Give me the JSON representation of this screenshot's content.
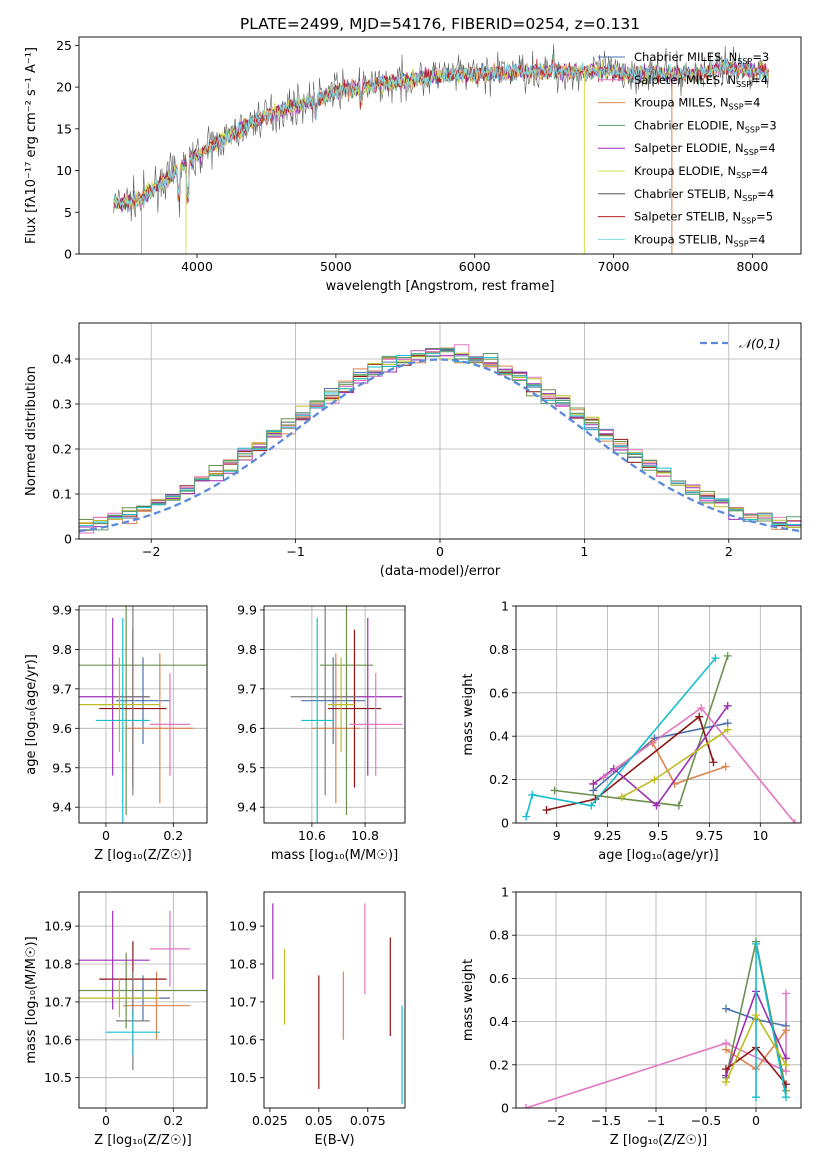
{
  "figure": {
    "title": "PLATE=2499, MJD=54176, FIBERID=0254, z=0.131"
  },
  "palette": [
    "#4c72b0",
    "#dd8452",
    "#6d904f",
    "#8c1515",
    "#9b30b4",
    "#e377c2",
    "#7f7f7f",
    "#bcbd22",
    "#17becf",
    "#5a9e6f"
  ],
  "chart_data": [
    {
      "id": "spectrum",
      "type": "line",
      "title": "PLATE=2499, MJD=54176, FIBERID=0254, z=0.131",
      "xlabel": "wavelength [Angstrom, rest frame]",
      "ylabel": "Flux [fλ10⁻¹⁷ erg cm⁻² s⁻¹ A⁻¹]",
      "xlim": [
        3150,
        8350
      ],
      "ylim": [
        0,
        26
      ],
      "xticks": [
        4000,
        5000,
        6000,
        7000,
        8000
      ],
      "yticks": [
        0,
        5,
        10,
        15,
        20,
        25
      ],
      "grid": false,
      "legend": "top-right",
      "envelope": {
        "x": [
          3400,
          3500,
          3600,
          3700,
          3800,
          3900,
          4000,
          4100,
          4200,
          4300,
          4400,
          4500,
          4600,
          4700,
          4800,
          4900,
          5000,
          5100,
          5200,
          5300,
          5400,
          5500,
          5600,
          5700,
          5800,
          5900,
          6000,
          6100,
          6200,
          6300,
          6400,
          6500,
          6600,
          6700,
          6800,
          6900,
          7000,
          7100,
          7200,
          7300,
          7400,
          7500,
          7600,
          7700,
          7800,
          7900,
          8000,
          8100
        ],
        "y": [
          6.0,
          6.3,
          6.6,
          8.0,
          9.3,
          10.5,
          11.8,
          12.9,
          13.9,
          14.7,
          15.8,
          16.6,
          17.2,
          17.7,
          18.3,
          18.8,
          19.6,
          19.8,
          20.0,
          20.3,
          20.6,
          20.8,
          21.1,
          21.2,
          21.4,
          21.5,
          21.6,
          21.6,
          21.7,
          21.9,
          21.9,
          21.8,
          21.8,
          21.8,
          21.9,
          21.9,
          21.8,
          21.5,
          21.7,
          21.6,
          21.5,
          21.5,
          21.6,
          22.0,
          22.4,
          22.2,
          22.1,
          21.8
        ]
      },
      "series": [
        {
          "name": "Chabrier MILES, N_SSP=3",
          "color": "#4c72b0"
        },
        {
          "name": "Salpeter MILES, N_SSP=4",
          "color": "#e377c2"
        },
        {
          "name": "Kroupa MILES, N_SSP=4",
          "color": "#dd8452"
        },
        {
          "name": "Chabrier ELODIE, N_SSP=3",
          "color": "#5a9e6f"
        },
        {
          "name": "Salpeter ELODIE, N_SSP=4",
          "color": "#9b30b4"
        },
        {
          "name": "Kroupa ELODIE, N_SSP=4",
          "color": "#d4e157"
        },
        {
          "name": "Chabrier STELIB, N_SSP=4",
          "color": "#555555"
        },
        {
          "name": "Salpeter STELIB, N_SSP=5",
          "color": "#b22222"
        },
        {
          "name": "Kroupa STELIB, N_SSP=4",
          "color": "#7fdbe8"
        }
      ],
      "legend_labels": [
        {
          "pre": "Chabrier MILES, N",
          "sub": "SSP",
          "post": "=3"
        },
        {
          "pre": "Salpeter MILES, N",
          "sub": "SSP",
          "post": "=4"
        },
        {
          "pre": "Kroupa MILES, N",
          "sub": "SSP",
          "post": "=4"
        },
        {
          "pre": "Chabrier ELODIE, N",
          "sub": "SSP",
          "post": "=3"
        },
        {
          "pre": "Salpeter ELODIE, N",
          "sub": "SSP",
          "post": "=4"
        },
        {
          "pre": "Kroupa ELODIE, N",
          "sub": "SSP",
          "post": "=4"
        },
        {
          "pre": "Chabrier STELIB, N",
          "sub": "SSP",
          "post": "=4"
        },
        {
          "pre": "Salpeter STELIB, N",
          "sub": "SSP",
          "post": "=5"
        },
        {
          "pre": "Kroupa STELIB, N",
          "sub": "SSP",
          "post": "=4"
        }
      ]
    },
    {
      "id": "residuals",
      "type": "bar",
      "xlabel": "(data-model)/error",
      "ylabel": "Normed distribution",
      "xlim": [
        -2.5,
        2.5
      ],
      "ylim": [
        0,
        0.48
      ],
      "xticks": [
        -2,
        -1,
        0,
        1,
        2
      ],
      "yticks": [
        0.0,
        0.1,
        0.2,
        0.3,
        0.4
      ],
      "grid": true,
      "legend": "top-right",
      "reference_curve": {
        "name": "𝒩(0,1)",
        "mean": 0,
        "sd": 1
      }
    },
    {
      "id": "age-vs-z",
      "type": "scatter",
      "xlabel": "Z [log₁₀(Z/Z☉)]",
      "ylabel": "age  [log₁₀(age/yr)]",
      "xlim": [
        -0.08,
        0.3
      ],
      "ylim": [
        9.36,
        9.91
      ],
      "xticks": [
        0.0,
        0.2
      ],
      "yticks": [
        9.4,
        9.5,
        9.6,
        9.7,
        9.8,
        9.9
      ],
      "grid": true,
      "points": [
        {
          "x": 0.11,
          "y": 9.67,
          "xerr": 0.08,
          "yerr": 0.11,
          "c": 0
        },
        {
          "x": 0.16,
          "y": 9.6,
          "xerr": 0.1,
          "yerr": 0.19,
          "c": 1
        },
        {
          "x": 0.06,
          "y": 9.76,
          "xerr": 0.24,
          "yerr": 0.38,
          "c": 2
        },
        {
          "x": 0.08,
          "y": 9.65,
          "xerr": 0.1,
          "yerr": 0.2,
          "c": 3
        },
        {
          "x": 0.02,
          "y": 9.68,
          "xerr": 0.11,
          "yerr": 0.2,
          "c": 4
        },
        {
          "x": 0.19,
          "y": 9.61,
          "xerr": 0.06,
          "yerr": 0.13,
          "c": 5
        },
        {
          "x": 0.08,
          "y": 9.68,
          "xerr": 0.05,
          "yerr": 0.25,
          "c": 6
        },
        {
          "x": 0.04,
          "y": 9.66,
          "xerr": 0.12,
          "yerr": 0.12,
          "c": 7
        },
        {
          "x": 0.05,
          "y": 9.62,
          "xerr": 0.08,
          "yerr": 0.26,
          "c": 8
        }
      ]
    },
    {
      "id": "age-vs-mass",
      "type": "scatter",
      "xlabel": "mass [log₁₀(M/M☉)]",
      "ylabel": "",
      "xlim": [
        10.42,
        10.95
      ],
      "ylim": [
        9.36,
        9.91
      ],
      "xticks": [
        10.6,
        10.8
      ],
      "yticks": [
        9.4,
        9.5,
        9.6,
        9.7,
        9.8,
        9.9
      ],
      "grid": true,
      "points": [
        {
          "x": 10.68,
          "y": 9.67,
          "xerr": 0.12,
          "yerr": 0.11,
          "c": 0
        },
        {
          "x": 10.69,
          "y": 9.6,
          "xerr": 0.09,
          "yerr": 0.19,
          "c": 1
        },
        {
          "x": 10.73,
          "y": 9.76,
          "xerr": 0.1,
          "yerr": 0.38,
          "c": 2
        },
        {
          "x": 10.76,
          "y": 9.65,
          "xerr": 0.1,
          "yerr": 0.2,
          "c": 3
        },
        {
          "x": 10.81,
          "y": 9.68,
          "xerr": 0.13,
          "yerr": 0.2,
          "c": 4
        },
        {
          "x": 10.84,
          "y": 9.61,
          "xerr": 0.1,
          "yerr": 0.13,
          "c": 5
        },
        {
          "x": 10.65,
          "y": 9.68,
          "xerr": 0.13,
          "yerr": 0.25,
          "c": 6
        },
        {
          "x": 10.71,
          "y": 9.66,
          "xerr": 0.05,
          "yerr": 0.12,
          "c": 7
        },
        {
          "x": 10.62,
          "y": 9.62,
          "xerr": 0.06,
          "yerr": 0.26,
          "c": 8
        }
      ]
    },
    {
      "id": "weight-vs-age",
      "type": "line",
      "xlabel": "age  [log₁₀(age/yr)]",
      "ylabel": "mass weight",
      "xlim": [
        8.8,
        10.2
      ],
      "ylim": [
        0,
        1.0
      ],
      "xticks": [
        9.0,
        9.25,
        9.5,
        9.75,
        10.0
      ],
      "yticks": [
        0.0,
        0.2,
        0.4,
        0.6,
        0.8,
        1.0
      ],
      "grid": true,
      "series": [
        {
          "c": 0,
          "x": [
            9.18,
            9.48,
            9.84
          ],
          "y": [
            0.15,
            0.39,
            0.46
          ]
        },
        {
          "c": 1,
          "x": [
            9.18,
            9.47,
            9.58,
            9.83
          ],
          "y": [
            0.18,
            0.37,
            0.18,
            0.26
          ]
        },
        {
          "c": 2,
          "x": [
            8.99,
            9.6,
            9.84
          ],
          "y": [
            0.15,
            0.08,
            0.77
          ]
        },
        {
          "c": 3,
          "x": [
            8.95,
            9.19,
            9.7,
            9.77
          ],
          "y": [
            0.06,
            0.11,
            0.49,
            0.28
          ]
        },
        {
          "c": 4,
          "x": [
            9.18,
            9.28,
            9.49,
            9.84
          ],
          "y": [
            0.18,
            0.25,
            0.08,
            0.54
          ]
        },
        {
          "c": 5,
          "x": [
            9.23,
            9.71,
            10.17
          ],
          "y": [
            0.21,
            0.53,
            0.0
          ]
        },
        {
          "c": 8,
          "x": [
            8.85,
            8.88,
            9.17,
            9.78
          ],
          "y": [
            0.03,
            0.13,
            0.08,
            0.76
          ]
        },
        {
          "c": 7,
          "x": [
            9.32,
            9.48,
            9.84
          ],
          "y": [
            0.12,
            0.2,
            0.43
          ]
        }
      ]
    },
    {
      "id": "mass-vs-z",
      "type": "scatter",
      "xlabel": "Z [log₁₀(Z/Z☉)]",
      "ylabel": "mass [log₁₀(M/M☉)]",
      "xlim": [
        -0.08,
        0.3
      ],
      "ylim": [
        10.42,
        10.99
      ],
      "xticks": [
        0.0,
        0.2
      ],
      "yticks": [
        10.5,
        10.6,
        10.7,
        10.8,
        10.9
      ],
      "grid": true,
      "points": [
        {
          "x": 0.11,
          "y": 10.71,
          "xerr": 0.08,
          "yerr": 0.06,
          "c": 0
        },
        {
          "x": 0.15,
          "y": 10.69,
          "xerr": 0.1,
          "yerr": 0.09,
          "c": 1
        },
        {
          "x": 0.06,
          "y": 10.73,
          "xerr": 0.24,
          "yerr": 0.1,
          "c": 2
        },
        {
          "x": 0.08,
          "y": 10.76,
          "xerr": 0.1,
          "yerr": 0.1,
          "c": 3
        },
        {
          "x": 0.02,
          "y": 10.81,
          "xerr": 0.11,
          "yerr": 0.13,
          "c": 4
        },
        {
          "x": 0.19,
          "y": 10.84,
          "xerr": 0.06,
          "yerr": 0.1,
          "c": 5
        },
        {
          "x": 0.08,
          "y": 10.65,
          "xerr": 0.05,
          "yerr": 0.13,
          "c": 6
        },
        {
          "x": 0.04,
          "y": 10.71,
          "xerr": 0.12,
          "yerr": 0.05,
          "c": 7
        },
        {
          "x": 0.08,
          "y": 10.62,
          "xerr": 0.08,
          "yerr": 0.06,
          "c": 8
        }
      ]
    },
    {
      "id": "mass-vs-ebv",
      "type": "scatter",
      "xlabel": "E(B-V)",
      "ylabel": "",
      "xlim": [
        0.022,
        0.094
      ],
      "ylim": [
        10.42,
        10.99
      ],
      "xticks": [
        0.025,
        0.05,
        0.075
      ],
      "yticks": [
        10.5,
        10.6,
        10.7,
        10.8,
        10.9
      ],
      "grid": false,
      "points": [
        {
          "x": 0.0265,
          "y": 10.86,
          "yerr": 0.1,
          "c": 4
        },
        {
          "x": 0.0325,
          "y": 10.74,
          "yerr": 0.1,
          "c": 7
        },
        {
          "x": 0.05,
          "y": 10.62,
          "yerr": 0.15,
          "c": 3
        },
        {
          "x": 0.0625,
          "y": 10.69,
          "yerr": 0.09,
          "c": 1
        },
        {
          "x": 0.0735,
          "y": 10.84,
          "yerr": 0.12,
          "c": 5
        },
        {
          "x": 0.0865,
          "y": 10.74,
          "yerr": 0.13,
          "c": 3
        },
        {
          "x": 0.0925,
          "y": 10.56,
          "yerr": 0.13,
          "c": 8
        }
      ]
    },
    {
      "id": "weight-vs-z",
      "type": "line",
      "xlabel": "Z [log₁₀(Z/Z☉)]",
      "ylabel": "mass weight",
      "xlim": [
        -2.4,
        0.45
      ],
      "ylim": [
        0,
        1.0
      ],
      "xticks": [
        -2.0,
        -1.5,
        -1.0,
        -0.5,
        0.0
      ],
      "yticks": [
        0.0,
        0.2,
        0.4,
        0.6,
        0.8,
        1.0
      ],
      "grid": true,
      "series": [
        {
          "c": 5,
          "x": [
            -2.3,
            -0.3,
            0.3,
            0.3
          ],
          "y": [
            0.0,
            0.3,
            0.17,
            0.53
          ]
        },
        {
          "c": 0,
          "x": [
            -0.3,
            0.0,
            0.3
          ],
          "y": [
            0.46,
            0.41,
            0.38
          ]
        },
        {
          "c": 2,
          "x": [
            -0.3,
            0.0,
            0.3
          ],
          "y": [
            0.14,
            0.77,
            0.08
          ]
        },
        {
          "c": 1,
          "x": [
            -0.3,
            0.0,
            0.3
          ],
          "y": [
            0.27,
            0.18,
            0.36
          ]
        },
        {
          "c": 4,
          "x": [
            -0.3,
            0.0,
            0.3
          ],
          "y": [
            0.15,
            0.54,
            0.23
          ]
        },
        {
          "c": 3,
          "x": [
            -0.3,
            0.0,
            0.3
          ],
          "y": [
            0.18,
            0.28,
            0.11
          ]
        },
        {
          "c": 8,
          "x": [
            0.0,
            0.0,
            0.3
          ],
          "y": [
            0.05,
            0.76,
            0.05
          ]
        },
        {
          "c": 7,
          "x": [
            -0.3,
            0.0,
            0.3
          ],
          "y": [
            0.12,
            0.43,
            0.2
          ]
        }
      ]
    }
  ]
}
